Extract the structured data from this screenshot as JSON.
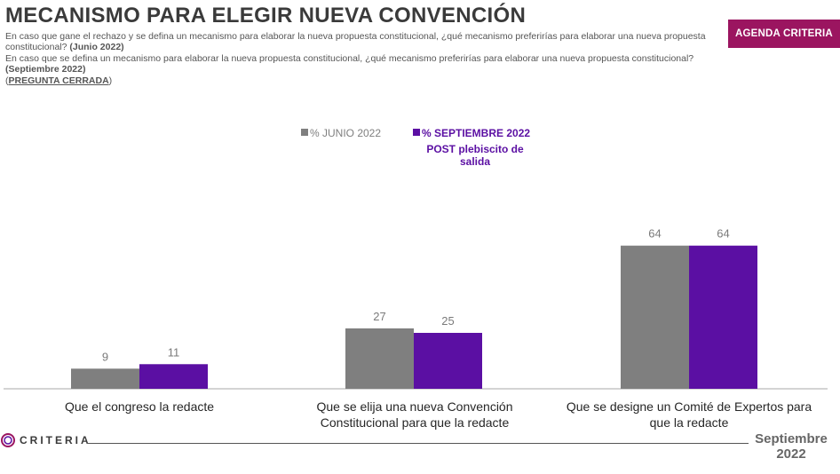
{
  "header": {
    "title": "MECANISMO PARA ELEGIR NUEVA CONVENCIÓN",
    "question_1": "En caso que gane el rechazo y se defina un mecanismo para elaborar la nueva propuesta constitucional, ¿qué mecanismo preferirías para elaborar una nueva propuesta constitucional?",
    "question_1_period": "(Junio 2022)",
    "question_2": "En caso que se defina un mecanismo para elaborar la nueva propuesta constitucional, ¿qué mecanismo preferirías para elaborar una nueva propuesta constitucional?",
    "question_2_period": "(Septiembre 2022)",
    "question_type_open": "(",
    "question_type": "PREGUNTA CERRADA",
    "question_type_close": ")",
    "badge": "AGENDA CRITERIA"
  },
  "colors": {
    "junio": "#7f7f7f",
    "septiembre": "#5b0fa3",
    "badge": "#9b1560"
  },
  "chart_data": {
    "type": "bar",
    "categories": [
      "Que el congreso la redacte",
      "Que se elija una nueva Convención Constitucional para que la redacte",
      "Que se designe un Comité de Expertos para que la redacte"
    ],
    "category_lines": [
      [
        "Que el congreso la redacte"
      ],
      [
        "Que se elija una nueva Convención",
        "Constitucional para que la redacte"
      ],
      [
        "Que se designe un Comité de Expertos para",
        "que la redacte"
      ]
    ],
    "series": [
      {
        "name": "% JUNIO 2022",
        "values": [
          9,
          27,
          64
        ]
      },
      {
        "name": "% SEPTIEMBRE 2022",
        "values": [
          11,
          25,
          64
        ]
      }
    ],
    "legend_note": [
      "POST plebiscito de",
      "salida"
    ],
    "ylim": [
      0,
      100
    ],
    "legend": "top-center",
    "grid": false
  },
  "footer": {
    "logo": "CRITERIA",
    "date_line_1": "Septiembre",
    "date_line_2": "2022"
  }
}
